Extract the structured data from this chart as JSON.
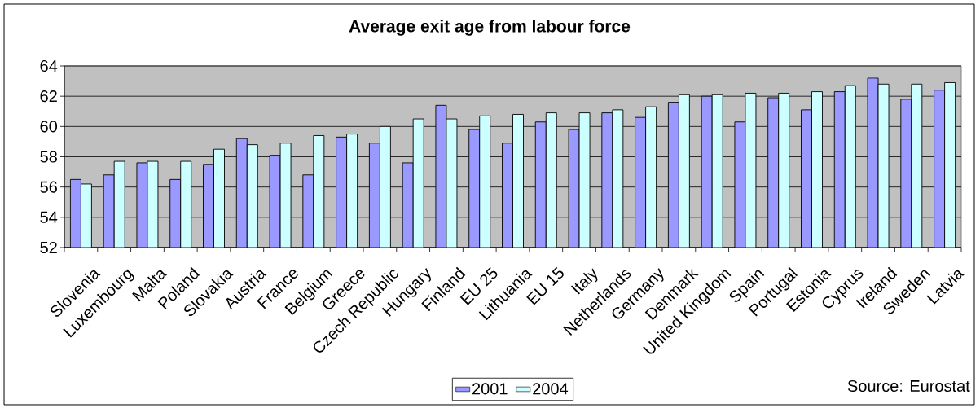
{
  "chart_data": {
    "type": "bar",
    "title": "Average exit age from labour force",
    "categories": [
      "Slovenia",
      "Luxembourg",
      "Malta",
      "Poland",
      "Slovakia",
      "Austria",
      "France",
      "Belgium",
      "Greece",
      "Czech Republic",
      "Hungary",
      "Finland",
      "EU 25",
      "Lithuania",
      "EU 15",
      "Italy",
      "Netherlands",
      "Germany",
      "Denmark",
      "United Kingdom",
      "Spain",
      "Portugal",
      "Estonia",
      "Cyprus",
      "Ireland",
      "Sweden",
      "Latvia"
    ],
    "series": [
      {
        "name": "2001",
        "color": "#9999ff",
        "values": [
          56.5,
          56.8,
          57.6,
          56.5,
          57.5,
          59.2,
          58.1,
          56.8,
          59.3,
          58.9,
          57.6,
          61.4,
          59.8,
          58.9,
          60.3,
          59.8,
          60.9,
          60.6,
          61.6,
          62.0,
          60.3,
          61.9,
          61.1,
          62.3,
          63.2,
          61.8,
          62.4
        ]
      },
      {
        "name": "2004",
        "color": "#ccffff",
        "values": [
          56.2,
          57.7,
          57.7,
          57.7,
          58.5,
          58.8,
          58.9,
          59.4,
          59.5,
          60.0,
          60.5,
          60.5,
          60.7,
          60.8,
          60.9,
          60.9,
          61.1,
          61.3,
          62.1,
          62.1,
          62.2,
          62.2,
          62.3,
          62.7,
          62.8,
          62.8,
          62.9
        ]
      }
    ],
    "ylim": [
      52,
      64
    ],
    "yticks": [
      52,
      54,
      56,
      58,
      60,
      62,
      64
    ],
    "grid": "y",
    "legend": "bottom",
    "annotations": [
      "Source: Eurostat"
    ]
  }
}
